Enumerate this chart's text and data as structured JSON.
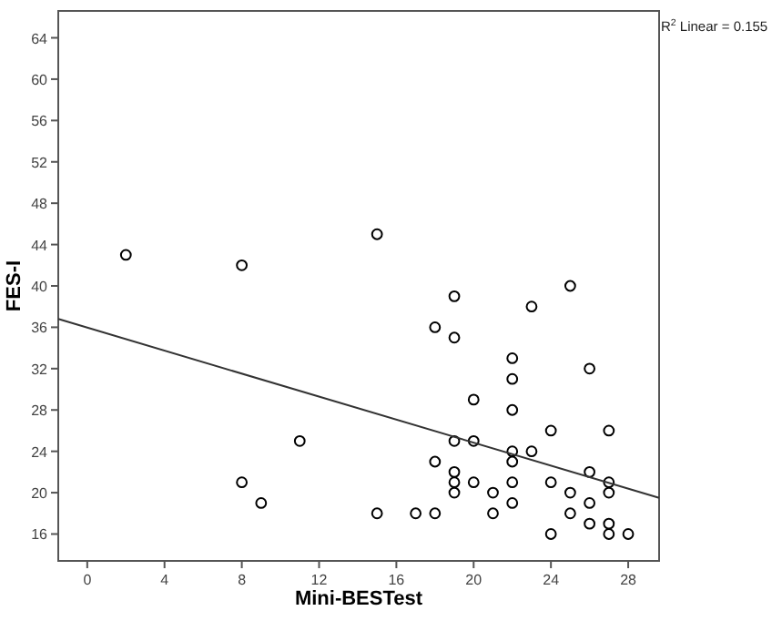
{
  "chart_data": {
    "type": "scatter",
    "xlabel": "Mini-BESTest",
    "ylabel": "FES-I",
    "annotations": [
      "R$^{2}$ Linear = 0.155"
    ],
    "xlim": [
      -1.5,
      29.6
    ],
    "ylim": [
      13.4,
      66.6
    ],
    "xticks": [
      0,
      4,
      8,
      12,
      16,
      20,
      24,
      28
    ],
    "yticks": [
      16,
      20,
      24,
      28,
      32,
      36,
      40,
      44,
      48,
      52,
      56,
      60,
      64
    ],
    "grid": false,
    "marker": "circle",
    "series": [
      {
        "color": "#000000",
        "x": [
          2,
          8,
          15,
          19,
          23,
          25,
          18,
          19,
          22,
          26,
          22,
          20,
          22,
          24,
          27,
          19,
          20,
          22,
          23,
          18,
          22,
          19,
          26,
          19,
          20,
          22,
          24,
          27,
          19,
          21,
          25,
          27,
          22,
          26,
          8,
          9,
          11,
          15,
          17,
          18,
          21,
          25,
          26,
          27,
          24,
          27,
          28
        ],
        "values": [
          43,
          42,
          45,
          39,
          38,
          40,
          36,
          35,
          33,
          32,
          31,
          29,
          28,
          26,
          26,
          25,
          25,
          24,
          24,
          23,
          23,
          22,
          22,
          21,
          21,
          21,
          21,
          21,
          20,
          20,
          20,
          20,
          19,
          19,
          21,
          19,
          25,
          18,
          18,
          18,
          18,
          18,
          17,
          17,
          16,
          16,
          16
        ]
      },
      {
        "type": "line",
        "color": "#333333",
        "marker": "none",
        "line_style": "solid",
        "x": [
          -1.5,
          29.6
        ],
        "values": [
          36.8,
          19.5
        ]
      }
    ]
  }
}
